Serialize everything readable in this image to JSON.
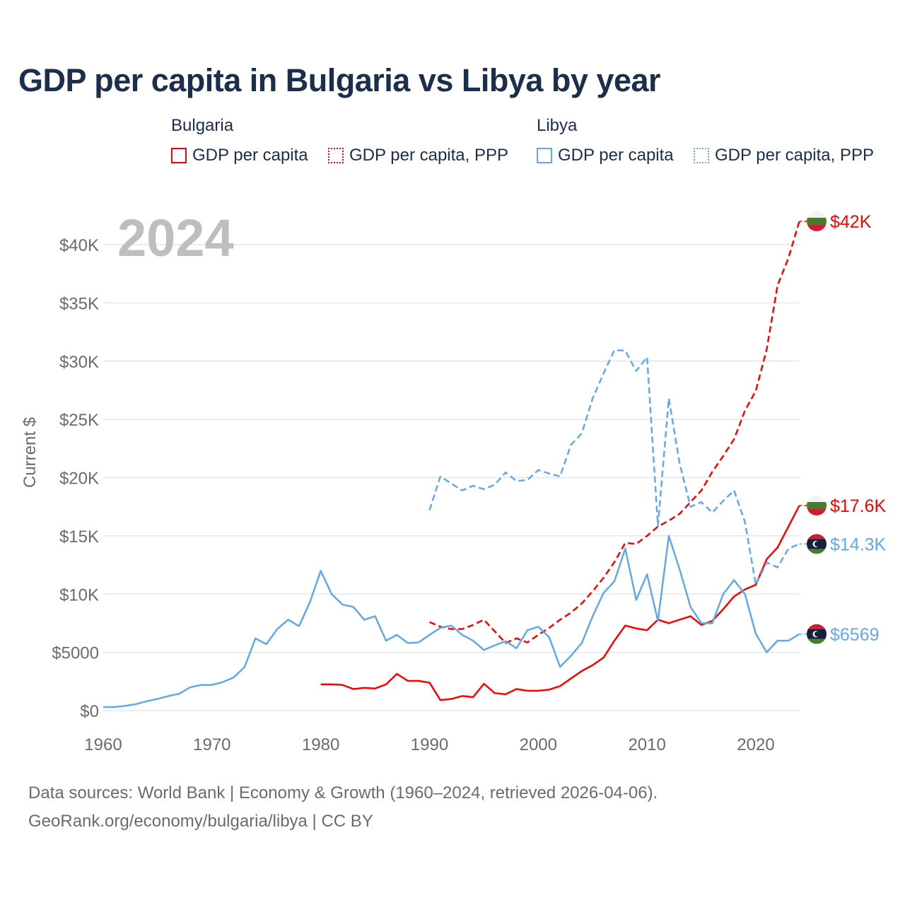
{
  "title": "GDP per capita in Bulgaria vs Libya by year",
  "legend": {
    "groups": [
      {
        "name": "Bulgaria",
        "items": [
          "GDP per capita",
          "GDP per capita, PPP"
        ]
      },
      {
        "name": "Libya",
        "items": [
          "GDP per capita",
          "GDP per capita, PPP"
        ]
      }
    ]
  },
  "footer": {
    "line1": "Data sources: World Bank | Economy & Growth (1960–2024, retrieved 2026-04-06).",
    "line2": "GeoRank.org/economy/bulgaria/libya | CC BY"
  },
  "colors": {
    "bulgaria": "#ff0000",
    "libya": "#62a8ea",
    "grid": "#e6e6e6",
    "axis_text": "#6b6b6b",
    "year_text": "#bdbdc2"
  },
  "chart_data": {
    "type": "line",
    "title": "GDP per capita in Bulgaria vs Libya by year",
    "year_label": "2024",
    "xlabel": "",
    "ylabel": "Current $",
    "xlim": [
      1960,
      2024
    ],
    "ylim": [
      0,
      42000
    ],
    "x_ticks": [
      1960,
      1970,
      1980,
      1990,
      2000,
      2010,
      2020
    ],
    "y_ticks": [
      {
        "value": 0,
        "label": "$0"
      },
      {
        "value": 5000,
        "label": "$5000"
      },
      {
        "value": 10000,
        "label": "$10K"
      },
      {
        "value": 15000,
        "label": "$15K"
      },
      {
        "value": 20000,
        "label": "$20K"
      },
      {
        "value": 25000,
        "label": "$25K"
      },
      {
        "value": 30000,
        "label": "$30K"
      },
      {
        "value": 35000,
        "label": "$35K"
      },
      {
        "value": 40000,
        "label": "$40K"
      }
    ],
    "grid": true,
    "series": [
      {
        "name": "Bulgaria GDP per capita",
        "country": "bulgaria",
        "dashed": false,
        "start": 1980,
        "end_label": "$17.6K",
        "values": [
          2250,
          2250,
          2200,
          1850,
          1950,
          1900,
          2250,
          3150,
          2550,
          2550,
          2400,
          900,
          1000,
          1250,
          1150,
          2300,
          1500,
          1400,
          1850,
          1700,
          1700,
          1800,
          2100,
          2750,
          3400,
          3900,
          4550,
          6000,
          7300,
          7050,
          6900,
          7800,
          7500,
          7800,
          8100,
          7350,
          7700,
          8700,
          9800,
          10400,
          10800,
          13000,
          14000,
          15800,
          17600
        ]
      },
      {
        "name": "Bulgaria GDP per capita, PPP",
        "country": "bulgaria",
        "dashed": true,
        "start": 1990,
        "end_label": "$42K",
        "values": [
          7600,
          7200,
          7000,
          7000,
          7350,
          7800,
          6800,
          5800,
          6200,
          5850,
          6500,
          7100,
          7800,
          8400,
          9200,
          10250,
          11400,
          12750,
          14400,
          14300,
          15000,
          15800,
          16300,
          16900,
          17900,
          18900,
          20500,
          21850,
          23300,
          25750,
          27450,
          31000,
          36500,
          38850,
          42000
        ]
      },
      {
        "name": "Libya GDP per capita",
        "country": "libya",
        "dashed": false,
        "start": 1960,
        "end_label": "$6569",
        "values": [
          300,
          300,
          400,
          550,
          800,
          1000,
          1250,
          1450,
          2000,
          2200,
          2200,
          2450,
          2850,
          3750,
          6200,
          5700,
          7000,
          7800,
          7250,
          9300,
          12000,
          10000,
          9100,
          8900,
          7800,
          8100,
          6000,
          6500,
          5800,
          5850,
          6500,
          7100,
          7300,
          6500,
          6000,
          5200,
          5600,
          5950,
          5350,
          6900,
          7200,
          6300,
          3750,
          4700,
          5800,
          8100,
          10100,
          11100,
          13900,
          9500,
          11700,
          7700,
          15000,
          12100,
          8900,
          7500,
          7500,
          10000,
          11200,
          10000,
          6600,
          5000,
          6000,
          6000,
          6569
        ]
      },
      {
        "name": "Libya GDP per capita, PPP",
        "country": "libya",
        "dashed": true,
        "start": 1990,
        "end_label": "$14.3K",
        "values": [
          17200,
          20100,
          19500,
          18900,
          19300,
          19000,
          19400,
          20450,
          19700,
          19800,
          20650,
          20350,
          20100,
          22800,
          23800,
          26800,
          28950,
          30950,
          30900,
          29150,
          30350,
          15850,
          26800,
          21200,
          17500,
          17900,
          17000,
          18000,
          18900,
          16200,
          10800,
          12700,
          12300,
          13900,
          14300
        ]
      }
    ]
  }
}
